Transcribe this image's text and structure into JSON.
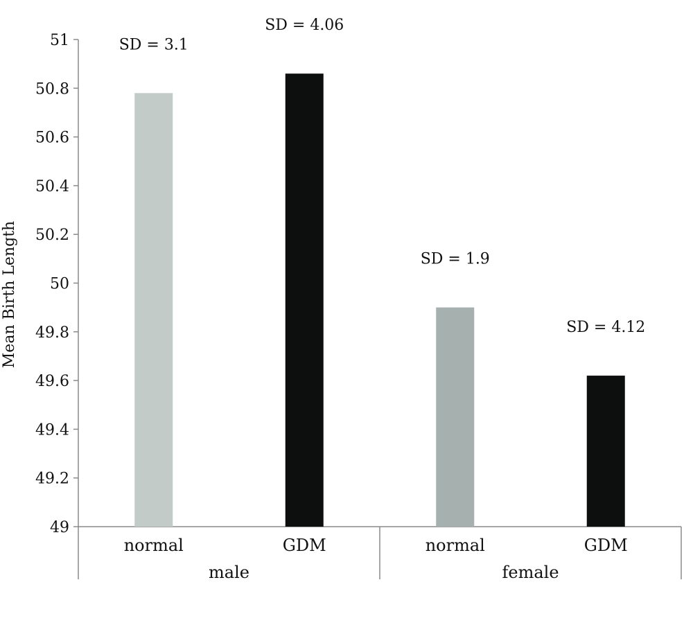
{
  "chart_data": {
    "type": "bar",
    "title": "",
    "ylabel": "Mean Birth Length",
    "xlabel": "",
    "ylim": [
      49,
      51
    ],
    "yticks": [
      "49",
      "49.2",
      "49.4",
      "49.6",
      "49.8",
      "50",
      "50.2",
      "50.4",
      "50.6",
      "50.8",
      "51"
    ],
    "grid": false,
    "groups": [
      {
        "name": "male",
        "bars": [
          {
            "category": "normal",
            "value": 50.78,
            "sd_label": "SD = 3.1",
            "color": "#c3cbc8"
          },
          {
            "category": "GDM",
            "value": 50.86,
            "sd_label": "SD = 4.06",
            "color": "#0d0f0e"
          }
        ]
      },
      {
        "name": "female",
        "bars": [
          {
            "category": "normal",
            "value": 49.9,
            "sd_label": "SD = 1.9",
            "color": "#a6b0af"
          },
          {
            "category": "GDM",
            "value": 49.62,
            "sd_label": "SD = 4.12",
            "color": "#0d0f0e"
          }
        ]
      }
    ]
  }
}
